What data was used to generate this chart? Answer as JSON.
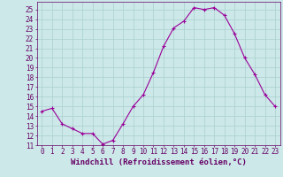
{
  "x": [
    0,
    1,
    2,
    3,
    4,
    5,
    6,
    7,
    8,
    9,
    10,
    11,
    12,
    13,
    14,
    15,
    16,
    17,
    18,
    19,
    20,
    21,
    22,
    23
  ],
  "y": [
    14.5,
    14.8,
    13.2,
    12.7,
    12.2,
    12.2,
    11.1,
    11.5,
    13.2,
    15.0,
    16.2,
    18.5,
    21.2,
    23.1,
    23.8,
    25.2,
    25.0,
    25.2,
    24.4,
    22.5,
    20.0,
    18.3,
    16.2,
    15.0
  ],
  "line_color": "#990099",
  "marker": "+",
  "marker_size": 3,
  "marker_linewidth": 0.8,
  "line_width": 0.8,
  "bg_color": "#cce8e8",
  "grid_color": "#aacfcf",
  "xlabel": "Windchill (Refroidissement éolien,°C)",
  "xlim": [
    -0.5,
    23.5
  ],
  "ylim": [
    11,
    25.8
  ],
  "yticks": [
    11,
    12,
    13,
    14,
    15,
    16,
    17,
    18,
    19,
    20,
    21,
    22,
    23,
    24,
    25
  ],
  "xticks": [
    0,
    1,
    2,
    3,
    4,
    5,
    6,
    7,
    8,
    9,
    10,
    11,
    12,
    13,
    14,
    15,
    16,
    17,
    18,
    19,
    20,
    21,
    22,
    23
  ],
  "tick_fontsize": 5.5,
  "xlabel_fontsize": 6.5,
  "text_color": "#660066",
  "spine_color": "#660066"
}
